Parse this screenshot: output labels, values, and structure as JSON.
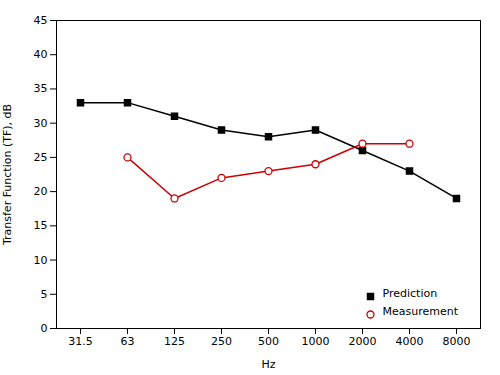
{
  "chart_data": {
    "type": "line",
    "xlabel": "Hz",
    "ylabel": "Transfer Function (TF), dB",
    "categories": [
      "31.5",
      "63",
      "125",
      "250",
      "500",
      "1000",
      "2000",
      "4000",
      "8000"
    ],
    "series": [
      {
        "name": "Prediction",
        "color": "#000000",
        "marker": "square",
        "values": [
          33.0,
          33.0,
          31.0,
          29.0,
          28.0,
          29.0,
          26.0,
          23.0,
          19.0
        ]
      },
      {
        "name": "Measurement",
        "color": "#cc0000",
        "marker": "circle",
        "values": [
          null,
          25.0,
          19.0,
          22.0,
          23.0,
          24.0,
          27.0,
          27.0,
          null
        ]
      }
    ],
    "ylim": [
      0,
      45
    ],
    "yticks": [
      0,
      5,
      10,
      15,
      20,
      25,
      30,
      35,
      40,
      45
    ],
    "legend": "lower right"
  }
}
